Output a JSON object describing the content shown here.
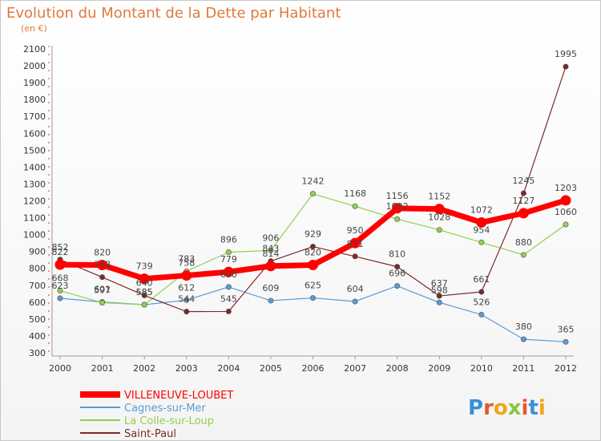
{
  "chart_data": {
    "type": "line",
    "title": "Evolution du Montant de la Dette par Habitant",
    "subtitle": "(en €)",
    "x": [
      "2000",
      "2001",
      "2002",
      "2003",
      "2004",
      "2005",
      "2006",
      "2007",
      "2008",
      "2009",
      "2010",
      "2011",
      "2012"
    ],
    "ylim": [
      300,
      2100
    ],
    "yticks": [
      300,
      400,
      500,
      600,
      700,
      800,
      900,
      1000,
      1100,
      1200,
      1300,
      1400,
      1500,
      1600,
      1700,
      1800,
      1900,
      2000,
      2100
    ],
    "grid": false,
    "legend_position": "bottom-left",
    "series": [
      {
        "name": "VILLENEUVE-LOUBET",
        "color": "#ff0000",
        "values": [
          822,
          820,
          739,
          758,
          779,
          814,
          820,
          950,
          1156,
          1152,
          1072,
          1127,
          1203
        ]
      },
      {
        "name": "Cagnes-sur-Mer",
        "color": "#5b9bd5",
        "values": [
          623,
          601,
          585,
          612,
          690,
          609,
          625,
          604,
          696,
          598,
          526,
          380,
          365
        ]
      },
      {
        "name": "La Colle-sur-Loup",
        "color": "#92d050",
        "values": [
          668,
          597,
          585,
          783,
          896,
          906,
          1242,
          1168,
          1092,
          1028,
          954,
          880,
          1060
        ]
      },
      {
        "name": "Saint-Paul",
        "color": "#7b2a2a",
        "values": [
          852,
          748,
          640,
          544,
          545,
          843,
          929,
          871,
          810,
          637,
          661,
          1245,
          1995
        ]
      }
    ]
  },
  "logo": {
    "text": "Proxiti",
    "letters": [
      "P",
      "r",
      "o",
      "x",
      "i",
      "t",
      "i"
    ],
    "colors": [
      "#3a8fd8",
      "#e8582c",
      "#f2a31b",
      "#8cc63f",
      "#e8582c",
      "#3a8fd8",
      "#f2a31b"
    ]
  }
}
